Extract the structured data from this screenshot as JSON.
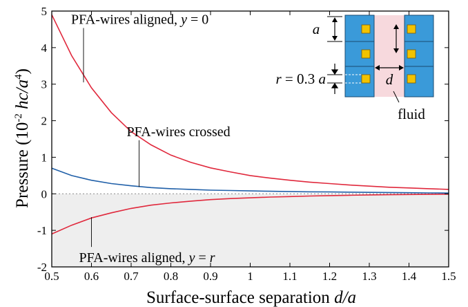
{
  "chart_data": {
    "type": "line",
    "title": "",
    "xlabel": {
      "main": "Surface-surface separation ",
      "var": "d/a"
    },
    "ylabel": {
      "p1": "Pressure (10",
      "sup1": "-2",
      "p2": " hc/a",
      "sup2": "4",
      "p3": ")"
    },
    "xlim": [
      0.5,
      1.5
    ],
    "ylim": [
      -2,
      5
    ],
    "xticks": [
      "0.5",
      "0.6",
      "0.7",
      "0.8",
      "0.9",
      "1",
      "1.1",
      "1.2",
      "1.3",
      "1.4",
      "1.5"
    ],
    "yticks": [
      "-2",
      "-1",
      "0",
      "1",
      "2",
      "3",
      "4",
      "5"
    ],
    "grid": false,
    "negative_region_shaded": true,
    "shade_color": "#eeeeee",
    "series": [
      {
        "name": "PFA-wires aligned, y = 0",
        "color": "#e0283c",
        "x": [
          0.5,
          0.55,
          0.6,
          0.65,
          0.7,
          0.75,
          0.8,
          0.85,
          0.9,
          0.95,
          1.0,
          1.05,
          1.1,
          1.15,
          1.2,
          1.25,
          1.3,
          1.35,
          1.4,
          1.45,
          1.5
        ],
        "y": [
          4.9,
          3.78,
          2.9,
          2.22,
          1.7,
          1.34,
          1.06,
          0.86,
          0.71,
          0.6,
          0.5,
          0.43,
          0.37,
          0.32,
          0.28,
          0.24,
          0.21,
          0.18,
          0.16,
          0.14,
          0.12
        ]
      },
      {
        "name": "PFA-wires crossed",
        "color": "#1f5fa8",
        "x": [
          0.5,
          0.55,
          0.6,
          0.65,
          0.7,
          0.75,
          0.8,
          0.85,
          0.9,
          0.95,
          1.0,
          1.05,
          1.1,
          1.15,
          1.2,
          1.25,
          1.3,
          1.35,
          1.4,
          1.45,
          1.5
        ],
        "y": [
          0.7,
          0.5,
          0.37,
          0.28,
          0.22,
          0.17,
          0.14,
          0.12,
          0.1,
          0.09,
          0.08,
          0.07,
          0.06,
          0.055,
          0.05,
          0.045,
          0.04,
          0.035,
          0.03,
          0.025,
          0.02
        ]
      },
      {
        "name": "PFA-wires aligned, y = r",
        "color": "#e0283c",
        "x": [
          0.5,
          0.55,
          0.6,
          0.65,
          0.7,
          0.75,
          0.8,
          0.85,
          0.9,
          0.95,
          1.0,
          1.05,
          1.1,
          1.15,
          1.2,
          1.25,
          1.3,
          1.35,
          1.4,
          1.45,
          1.5
        ],
        "y": [
          -1.1,
          -0.86,
          -0.66,
          -0.52,
          -0.4,
          -0.31,
          -0.25,
          -0.2,
          -0.16,
          -0.13,
          -0.11,
          -0.09,
          -0.075,
          -0.06,
          -0.05,
          -0.04,
          -0.03,
          -0.025,
          -0.02,
          -0.015,
          -0.01
        ]
      }
    ],
    "annotations": [
      {
        "key": "aligned0",
        "name": "PFA-wires aligned, ",
        "var": "y",
        "rest": " = 0",
        "point": [
          0.58,
          3.05
        ],
        "label_at": [
          0.58,
          4.65
        ]
      },
      {
        "key": "crossed",
        "name": "PFA-wires crossed",
        "var": "",
        "rest": "",
        "point": [
          0.72,
          0.19
        ],
        "label_at": [
          0.72,
          1.58
        ]
      },
      {
        "key": "alignedr",
        "name": "PFA-wires aligned, ",
        "var": "y",
        "rest": " = r",
        "point": [
          0.6,
          -0.64
        ],
        "label_at": [
          0.6,
          -1.87
        ]
      }
    ],
    "inset": {
      "label_a": "a",
      "label_r_prefix": "r",
      "label_r_suffix": " = 0.3 ",
      "label_r_var": "a",
      "label_d": "d",
      "label_fluid": "fluid",
      "plate_color": "#3a9ad9",
      "wire_color": "#f2c300",
      "fluid_color": "#f7d9dd"
    }
  }
}
